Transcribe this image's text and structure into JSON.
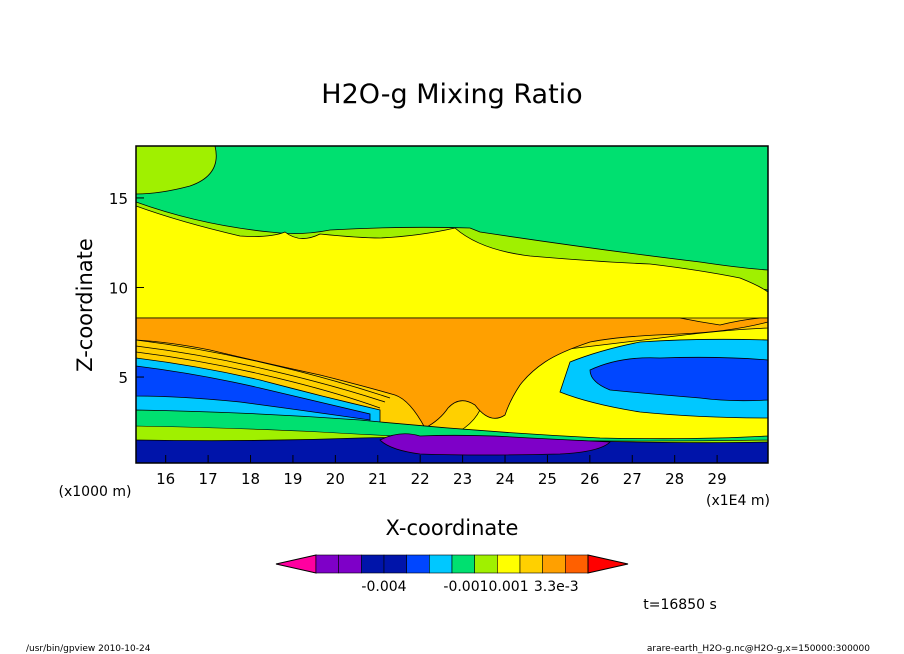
{
  "chart_data": {
    "type": "heatmap",
    "title": "H2O-g Mixing Ratio",
    "xlabel": "X-coordinate",
    "ylabel": "Z-coordinate",
    "x_units_left": "(x1000 m)",
    "x_units_right": "(x1E4 m)",
    "x_ticks": [
      "16",
      "17",
      "18",
      "19",
      "20",
      "21",
      "22",
      "23",
      "24",
      "25",
      "26",
      "27",
      "28",
      "29"
    ],
    "xlim": [
      15.3,
      30.2
    ],
    "y_ticks": [
      "5",
      "10",
      "15"
    ],
    "ylim": [
      0.2,
      17.9
    ],
    "time_label": "t=16850 s",
    "colorbar": {
      "labels": [
        {
          "text": "-0.004",
          "index": 3
        },
        {
          "text": "-0.0010.001",
          "index": 7.5
        },
        {
          "text": "3.3e-3",
          "index": 10.6
        }
      ],
      "colors": [
        "#ff00a0",
        "#7e00c8",
        "#7e00c8",
        "#0014aa",
        "#0014aa",
        "#0046ff",
        "#00c8ff",
        "#00e070",
        "#a0f000",
        "#ffff00",
        "#ffd000",
        "#ffa000",
        "#ff6000",
        "#ff0000"
      ]
    },
    "layers": [
      {
        "name": "lower-dark-blue",
        "color": "#0014aa"
      },
      {
        "name": "purple-core",
        "color": "#7e00c8"
      },
      {
        "name": "blue",
        "color": "#0046ff"
      },
      {
        "name": "cyan",
        "color": "#00c8ff"
      },
      {
        "name": "green",
        "color": "#00e070"
      },
      {
        "name": "light-green",
        "color": "#a0f000"
      },
      {
        "name": "yellow",
        "color": "#ffff00"
      },
      {
        "name": "light-orange",
        "color": "#ffd000"
      },
      {
        "name": "orange",
        "color": "#ffa000"
      }
    ]
  },
  "footer": {
    "left": "/usr/bin/gpview 2010-10-24",
    "right": "arare-earth_H2O-g.nc@H2O-g,x=150000:300000"
  }
}
